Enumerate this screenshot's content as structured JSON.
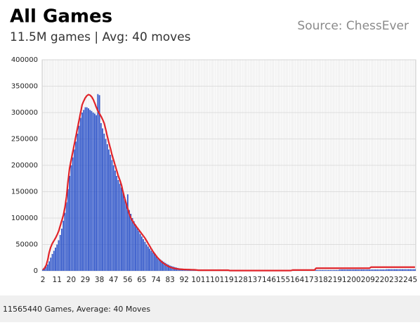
{
  "chart_data": {
    "type": "bar",
    "title": "All Games",
    "subtitle": "11.5M games | Avg: 40 moves",
    "source": "Source: ChessEver",
    "caption": "11565440 Games, Average: 40 Moves",
    "ylim": [
      0,
      400000
    ],
    "yticks": [
      0,
      50000,
      100000,
      150000,
      200000,
      250000,
      300000,
      350000,
      400000
    ],
    "grid": true,
    "categories": [
      "2",
      null,
      null,
      null,
      null,
      null,
      null,
      null,
      null,
      "11",
      null,
      null,
      null,
      null,
      null,
      null,
      null,
      null,
      "20",
      null,
      null,
      null,
      null,
      null,
      null,
      null,
      null,
      "29",
      null,
      null,
      null,
      null,
      null,
      null,
      null,
      null,
      "38",
      null,
      null,
      null,
      null,
      null,
      null,
      null,
      null,
      "47",
      null,
      null,
      null,
      null,
      null,
      null,
      null,
      null,
      "56",
      null,
      null,
      null,
      null,
      null,
      null,
      null,
      null,
      "65",
      null,
      null,
      null,
      null,
      null,
      null,
      null,
      null,
      "74",
      null,
      null,
      null,
      null,
      null,
      null,
      null,
      null,
      "83",
      null,
      null,
      null,
      null,
      null,
      null,
      null,
      null,
      "92",
      null,
      null,
      null,
      null,
      null,
      null,
      null,
      null,
      "101",
      null,
      null,
      null,
      null,
      null,
      null,
      null,
      null,
      "110",
      null,
      null,
      null,
      null,
      null,
      null,
      null,
      null,
      "119",
      null,
      null,
      null,
      null,
      null,
      null,
      null,
      null,
      "128",
      null,
      null,
      null,
      null,
      null,
      null,
      null,
      null,
      "137",
      null,
      null,
      null,
      null,
      null,
      null,
      null,
      null,
      "146",
      null,
      null,
      null,
      null,
      null,
      null,
      null,
      null,
      "155",
      null,
      null,
      null,
      null,
      null,
      null,
      null,
      null,
      "164",
      null,
      null,
      null,
      null,
      null,
      null,
      null,
      null,
      "173",
      null,
      null,
      null,
      null,
      null,
      null,
      null,
      null,
      "182",
      null,
      null,
      null,
      null,
      null,
      null,
      null,
      null,
      "191",
      null,
      null,
      null,
      null,
      null,
      null,
      null,
      null,
      "200",
      null,
      null,
      null,
      null,
      null,
      null,
      null,
      null,
      "209",
      null,
      null,
      null,
      null,
      null,
      null,
      null,
      null,
      "220",
      null,
      null,
      null,
      null,
      null,
      null,
      null,
      null,
      "232",
      null,
      null,
      null,
      null,
      null,
      null,
      null,
      null,
      "245",
      null,
      null,
      null
    ],
    "series": [
      {
        "type": "bar",
        "color": "#2f55c8",
        "values": [
          3000,
          5000,
          8000,
          12000,
          18000,
          25000,
          32000,
          38000,
          44000,
          50000,
          58000,
          68000,
          80000,
          95000,
          110000,
          130000,
          155000,
          180000,
          200000,
          215000,
          230000,
          245000,
          260000,
          275000,
          290000,
          300000,
          305000,
          310000,
          310000,
          308000,
          305000,
          303000,
          300000,
          298000,
          295000,
          335000,
          333000,
          280000,
          270000,
          260000,
          250000,
          240000,
          230000,
          220000,
          210000,
          200000,
          190000,
          180000,
          172000,
          165000,
          158000,
          150000,
          140000,
          130000,
          145000,
          115000,
          108000,
          100000,
          94000,
          88000,
          82000,
          76000,
          70000,
          65000,
          60000,
          55000,
          50000,
          46000,
          42000,
          38000,
          35000,
          32000,
          29000,
          26000,
          23000,
          21000,
          19000,
          17000,
          15000,
          13000,
          11500,
          10000,
          9000,
          8000,
          7000,
          6200,
          5500,
          4800,
          4200,
          3700,
          3200,
          2800,
          2500,
          2200,
          2000,
          1800,
          1600,
          1400,
          1300,
          1200,
          1200,
          1200,
          1200,
          1200,
          1200,
          1200,
          1200,
          1200,
          1200,
          1200,
          1200,
          1200,
          1200,
          1200,
          1200,
          1200,
          1200,
          1200,
          1200,
          1000,
          1000,
          1000,
          1000,
          1000,
          1000,
          1000,
          1000,
          1000,
          1000,
          1000,
          1000,
          1000,
          1000,
          1000,
          1000,
          1000,
          1000,
          1000,
          1000,
          1000,
          1000,
          1000,
          1000,
          1000,
          1000,
          1000,
          1000,
          1000,
          1000,
          1000,
          1000,
          1000,
          1000,
          1000,
          1000,
          1000,
          1000,
          1000,
          1000,
          1500,
          1500,
          1500,
          1500,
          1500,
          1500,
          1500,
          1500,
          1500,
          1500,
          1500,
          1500,
          1500,
          1500,
          1500,
          1500,
          1500,
          1500,
          1500,
          1500,
          1500,
          1500,
          1500,
          1500,
          1500,
          1500,
          1500,
          1500,
          1500,
          1500,
          2500,
          2500,
          2500,
          2500,
          2500,
          2500,
          2500,
          2500,
          2500,
          2500,
          2500,
          2500,
          2500,
          2500,
          2500,
          2500,
          2500,
          2500,
          2500,
          2500,
          2500,
          2500,
          2500,
          2500,
          2500,
          2500,
          2500,
          2500,
          2500,
          2500,
          3000,
          3000,
          3000,
          3000,
          3000,
          3000,
          3000,
          3000,
          3000,
          3000,
          3000,
          3000,
          3000,
          3000,
          3000,
          3000,
          3000,
          3000,
          3000
        ]
      },
      {
        "type": "line",
        "color": "#e0242a",
        "values": [
          2000,
          5000,
          10000,
          20000,
          35000,
          45000,
          52000,
          57000,
          62000,
          68000,
          75000,
          85000,
          95000,
          105000,
          120000,
          140000,
          170000,
          195000,
          210000,
          225000,
          240000,
          255000,
          270000,
          285000,
          300000,
          315000,
          322000,
          328000,
          332000,
          334000,
          333000,
          330000,
          325000,
          318000,
          310000,
          303000,
          298000,
          293000,
          287000,
          280000,
          268000,
          255000,
          243000,
          232000,
          220000,
          210000,
          200000,
          190000,
          180000,
          172000,
          163000,
          150000,
          138000,
          128000,
          118000,
          108000,
          100000,
          95000,
          90000,
          86000,
          82000,
          78000,
          74000,
          70000,
          66000,
          62000,
          57000,
          52000,
          47000,
          42000,
          37000,
          33000,
          29000,
          25000,
          22000,
          19000,
          16000,
          14000,
          12000,
          10000,
          8500,
          7000,
          6000,
          5000,
          4500,
          4000,
          3500,
          3200,
          3000,
          2800,
          2600,
          2500,
          2400,
          2300,
          2200,
          2100,
          2000,
          1800,
          1600,
          1200,
          1200,
          1200,
          1200,
          1200,
          1200,
          1200,
          1200,
          1200,
          1200,
          1200,
          1200,
          1200,
          1200,
          1200,
          1200,
          1200,
          1200,
          1200,
          1200,
          500,
          500,
          500,
          500,
          500,
          500,
          500,
          500,
          500,
          500,
          500,
          500,
          500,
          500,
          500,
          500,
          500,
          500,
          500,
          500,
          500,
          500,
          500,
          500,
          500,
          500,
          500,
          500,
          500,
          500,
          500,
          500,
          500,
          500,
          500,
          500,
          500,
          500,
          500,
          500,
          1500,
          1500,
          1500,
          1500,
          1500,
          1500,
          1500,
          1500,
          1500,
          1500,
          1500,
          1500,
          1500,
          1500,
          1500,
          5000,
          5000,
          5000,
          5000,
          5000,
          5000,
          5000,
          5000,
          5000,
          5000,
          5000,
          5000,
          5000,
          5000,
          5000,
          5000,
          5000,
          5000,
          5000,
          5000,
          5000,
          5000,
          5000,
          5000,
          5000,
          5000,
          5000,
          5000,
          5000,
          5000,
          5000,
          5000,
          5000,
          5000,
          5000,
          7000,
          7000,
          7000,
          7000,
          7000,
          7000,
          7000,
          7000,
          7000,
          7000,
          7000,
          7000,
          7000,
          7000,
          7000,
          7000,
          7000,
          7000,
          7000,
          7000,
          7000,
          7000,
          7000,
          7000,
          7000,
          7000,
          7000,
          7000,
          7000
        ]
      }
    ]
  }
}
